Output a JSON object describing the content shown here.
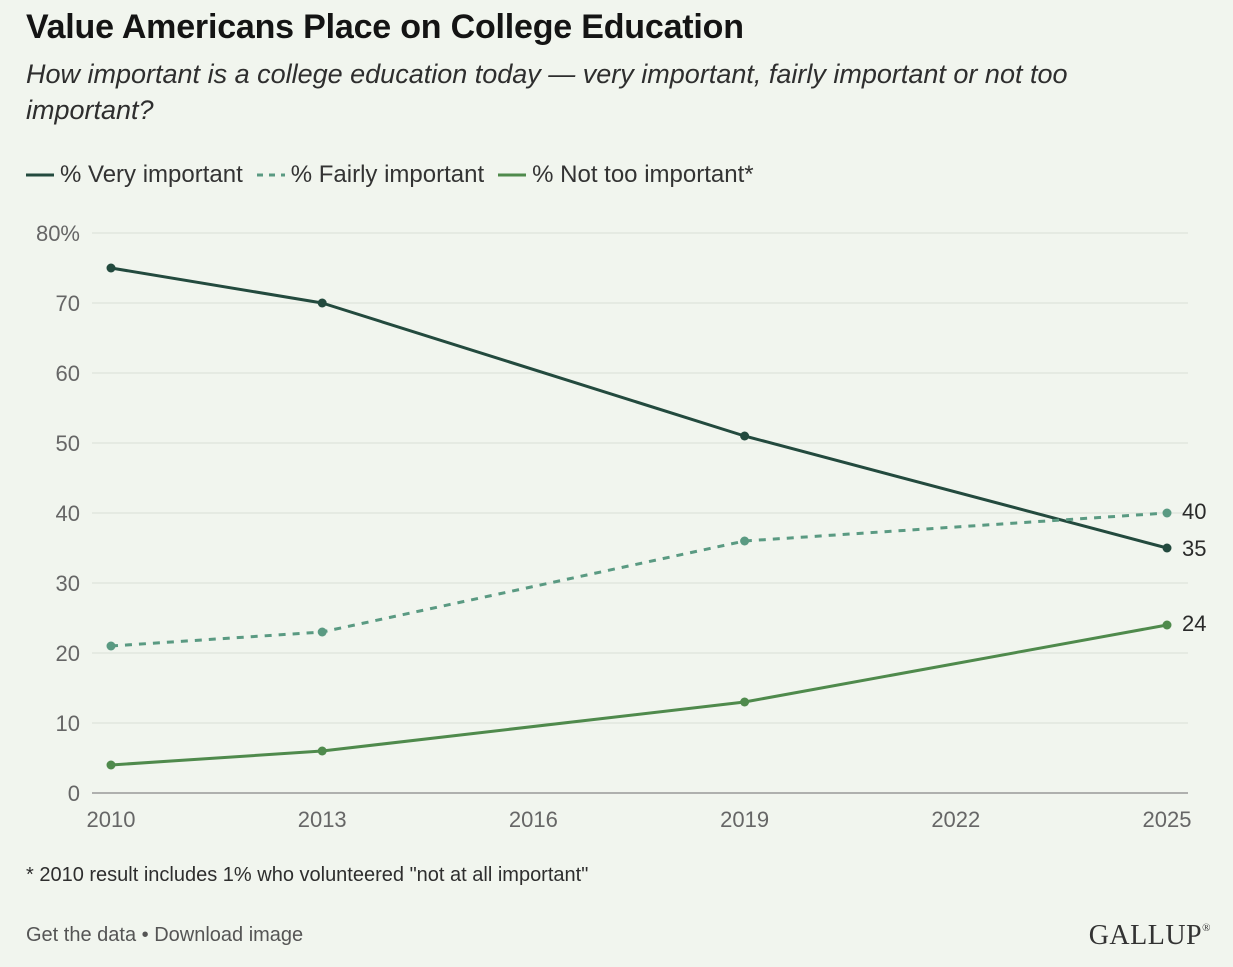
{
  "header": {
    "title": "Value Americans Place on College Education",
    "subtitle": "How important is a college education today — very important, fairly important or not too important?"
  },
  "colors": {
    "very": "#234a3e",
    "fairly": "#5a9a82",
    "not_too": "#4f8a4c",
    "grid": "#d9e0d6",
    "axis": "#999999",
    "tick_text": "#666666"
  },
  "chart_data": {
    "type": "line",
    "x": [
      2010,
      2013,
      2019,
      2025
    ],
    "x_ticks": [
      "2010",
      "2013",
      "2016",
      "2019",
      "2022",
      "2025"
    ],
    "y_ticks": [
      "80%",
      "70",
      "60",
      "50",
      "40",
      "30",
      "20",
      "10",
      "0"
    ],
    "xlim": [
      2010,
      2025
    ],
    "ylim": [
      0,
      80
    ],
    "grid": true,
    "legend_position": "top-left",
    "series": [
      {
        "name": "% Very important",
        "values": [
          75,
          70,
          51,
          35
        ],
        "end_label": "35",
        "style": "solid"
      },
      {
        "name": "% Fairly important",
        "values": [
          21,
          23,
          36,
          40
        ],
        "end_label": "40",
        "style": "dashed"
      },
      {
        "name": "% Not too important*",
        "values": [
          4,
          6,
          13,
          24
        ],
        "end_label": "24",
        "style": "solid"
      }
    ]
  },
  "footnote": "* 2010 result includes 1% who volunteered \"not at all important\"",
  "footer": {
    "get_data": "Get the data",
    "separator": " • ",
    "download": "Download image"
  },
  "brand": {
    "name": "GALLUP",
    "mark": "®"
  }
}
